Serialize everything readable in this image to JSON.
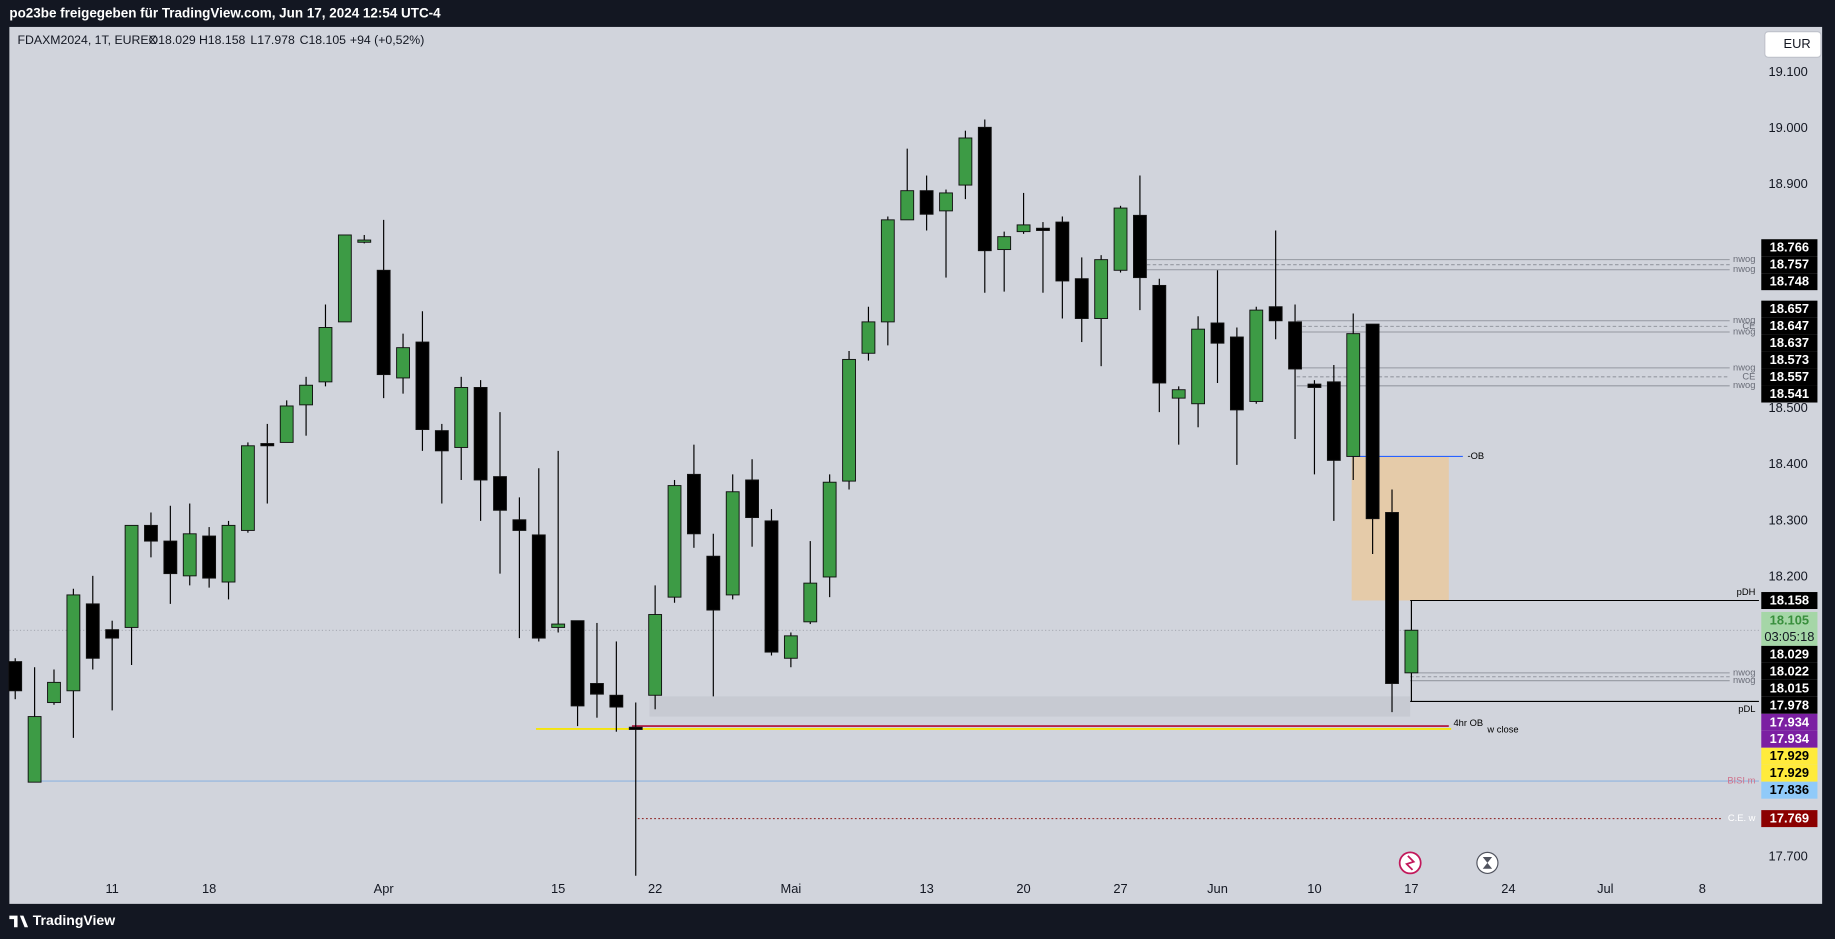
{
  "header": {
    "text": "po23be freigegeben für TradingView.com, Jun 17, 2024 12:54 UTC-4"
  },
  "footer": {
    "brand": "TradingView"
  },
  "currency_button": "EUR",
  "chart_data": {
    "type": "candlestick",
    "title": "FDAXM2024, 1T, EUREX",
    "ohlc_labels": [
      "O18.029",
      "H18.158",
      "L17.978",
      "C18.105"
    ],
    "change": "+94 (+0,52%)",
    "up_color": "#3d9b45",
    "down_color": "#000000",
    "categories": [
      null,
      null,
      null,
      null,
      null,
      "11",
      null,
      null,
      null,
      null,
      "18",
      null,
      null,
      null,
      null,
      null,
      null,
      null,
      null,
      "Apr",
      null,
      null,
      null,
      null,
      null,
      null,
      null,
      null,
      "15",
      null,
      null,
      null,
      null,
      "22",
      null,
      null,
      null,
      null,
      null,
      null,
      "Mai",
      null,
      null,
      null,
      null,
      null,
      null,
      "13",
      null,
      null,
      null,
      null,
      "20",
      null,
      null,
      null,
      null,
      "27",
      null,
      null,
      null,
      null,
      "Jun",
      null,
      null,
      null,
      null,
      "10",
      null,
      null,
      null,
      null,
      "17",
      null,
      null,
      null,
      null,
      "24",
      null,
      null,
      null,
      null,
      "Jul",
      null,
      null,
      null,
      null,
      "8",
      null
    ],
    "open": [
      18049,
      17834,
      17976,
      17997,
      18152,
      18106,
      18110,
      18292,
      18264,
      18202,
      18273,
      18191,
      18283,
      18438,
      18440,
      18507,
      18548,
      18655,
      18797,
      18747,
      18555,
      18619,
      18461,
      18431,
      18538,
      18379,
      18302,
      18275,
      18110,
      18122,
      18010,
      17989,
      17932,
      17989,
      18164,
      18383,
      18237,
      18168,
      18373,
      18300,
      18055,
      18120,
      18200,
      18371,
      18599,
      18655,
      18837,
      18889,
      18853,
      18899,
      19002,
      18784,
      18816,
      18822,
      18833,
      18732,
      18661,
      18747,
      18845,
      18720,
      18519,
      18509,
      18653,
      18628,
      18513,
      18682,
      18655,
      18544,
      18548,
      18415,
      18651,
      18315,
      18029,
      null,
      null,
      null,
      null,
      null,
      null,
      null,
      null,
      null,
      null,
      null,
      null,
      null,
      null,
      null,
      null
    ],
    "high": [
      18055,
      18039,
      18035,
      18179,
      18202,
      18122,
      18292,
      18315,
      18327,
      18331,
      18289,
      18300,
      18440,
      18473,
      18515,
      18557,
      18686,
      18810,
      18810,
      18837,
      18634,
      18674,
      18473,
      18557,
      18551,
      18494,
      18342,
      18394,
      18425,
      18122,
      18118,
      18085,
      17976,
      18185,
      18373,
      18436,
      18277,
      18383,
      18410,
      18321,
      18101,
      18264,
      18383,
      18603,
      18682,
      18843,
      18964,
      18916,
      18891,
      18996,
      19016,
      18816,
      18885,
      18833,
      18843,
      18770,
      18774,
      18862,
      18916,
      18732,
      18540,
      18665,
      18747,
      18645,
      18682,
      18818,
      18686,
      18551,
      18578,
      18670,
      18651,
      18356,
      18158,
      null,
      null,
      null,
      null,
      null,
      null,
      null,
      null,
      null,
      null,
      null,
      null,
      null,
      null,
      null,
      null
    ],
    "low": [
      17982,
      17834,
      17972,
      17913,
      18035,
      17962,
      18043,
      18235,
      18152,
      18185,
      18181,
      18160,
      18279,
      18331,
      18448,
      18452,
      18540,
      18655,
      18795,
      18519,
      18527,
      18425,
      18331,
      18373,
      18300,
      18206,
      18091,
      18085,
      18101,
      17934,
      17949,
      17924,
      17667,
      17964,
      18154,
      18252,
      17987,
      18160,
      18254,
      18060,
      18039,
      18116,
      18164,
      18356,
      18586,
      18613,
      18837,
      18818,
      18734,
      18874,
      18707,
      18709,
      18812,
      18707,
      18661,
      18619,
      18576,
      18743,
      18676,
      18494,
      18436,
      18467,
      18546,
      18400,
      18509,
      18624,
      18446,
      18383,
      18300,
      18373,
      18241,
      17959,
      17978,
      null,
      null,
      null,
      null,
      null,
      null,
      null,
      null,
      null,
      null,
      null,
      null,
      null,
      null,
      null,
      null
    ],
    "close": [
      17997,
      17951,
      18012,
      18168,
      18055,
      18091,
      18292,
      18264,
      18206,
      18277,
      18198,
      18292,
      18434,
      18434,
      18505,
      18542,
      18645,
      18810,
      18801,
      18561,
      18609,
      18463,
      18425,
      18538,
      18373,
      18319,
      18283,
      18091,
      18116,
      17970,
      17991,
      17968,
      17928,
      18133,
      18363,
      18277,
      18141,
      18352,
      18306,
      18066,
      18095,
      18189,
      18369,
      18588,
      18655,
      18837,
      18889,
      18847,
      18885,
      18983,
      18782,
      18807,
      18828,
      18818,
      18728,
      18661,
      18766,
      18858,
      18734,
      18546,
      18534,
      18642,
      18617,
      18498,
      18676,
      18657,
      18571,
      18538,
      18408,
      18634,
      18304,
      18010,
      18105,
      null,
      null,
      null,
      null,
      null,
      null,
      null,
      null,
      null,
      null,
      null,
      null,
      null,
      null,
      null,
      null
    ],
    "ylim": [
      17619,
      19179
    ],
    "yticks": [
      {
        "value": 17700,
        "label": "17.700"
      },
      {
        "value": 18200,
        "label": "18.200"
      },
      {
        "value": 18300,
        "label": "18.300"
      },
      {
        "value": 18400,
        "label": "18.400"
      },
      {
        "value": 18500,
        "label": "18.500"
      },
      {
        "value": 18900,
        "label": "18.900"
      },
      {
        "value": 19000,
        "label": "19.000"
      },
      {
        "value": 19100,
        "label": "19.100"
      }
    ],
    "zones": [
      {
        "from": 18415,
        "to": 18158,
        "color": "#e9c9a0"
      },
      {
        "from": 17987,
        "to": 17951,
        "color": "#c6c8d0"
      }
    ],
    "lines": [
      {
        "value": 18766,
        "label": "nwog",
        "color": "#9598a1"
      },
      {
        "value": 18757,
        "color": "#9598a1",
        "style": "dashed"
      },
      {
        "value": 18748,
        "label": "nwog",
        "color": "#9598a1"
      },
      {
        "value": 18657,
        "label": "nwog",
        "color": "#9598a1"
      },
      {
        "value": 18647,
        "label": "CE",
        "color": "#9598a1",
        "style": "dashed"
      },
      {
        "value": 18637,
        "label": "nwog",
        "color": "#9598a1"
      },
      {
        "value": 18573,
        "label": "nwog",
        "color": "#9598a1"
      },
      {
        "value": 18557,
        "label": "CE",
        "color": "#9598a1",
        "style": "dashed"
      },
      {
        "value": 18541,
        "label": "nwog",
        "color": "#9598a1"
      },
      {
        "value": 18415,
        "label": "-OB",
        "color": "#2962ff"
      },
      {
        "value": 18158,
        "label": "pDH",
        "color": "#000000"
      },
      {
        "value": 18029,
        "label": "nwog",
        "color": "#9598a1"
      },
      {
        "value": 18022,
        "color": "#9598a1",
        "style": "dashed"
      },
      {
        "value": 18015,
        "label": "nwog",
        "color": "#9598a1"
      },
      {
        "value": 17978,
        "label": "pDL",
        "color": "#000000"
      },
      {
        "value": 17934,
        "label": "4hr OB",
        "color": "#b2254a"
      },
      {
        "value": 17929,
        "label": "w close",
        "color": "#f5e50a"
      },
      {
        "value": 17836,
        "label": "BISI m",
        "color": "#90b4e0",
        "label_color": "#d0708a"
      },
      {
        "value": 17769,
        "label": "C.E. w",
        "color": "#8b1a1a",
        "style": "dotted",
        "label_color": "#ffffff"
      }
    ],
    "badges": [
      {
        "value": 18766,
        "label": "18.766",
        "color": "#000000",
        "text_color": "#ffffff"
      },
      {
        "value": 18757,
        "label": "18.757",
        "color": "#000000",
        "text_color": "#ffffff"
      },
      {
        "value": 18748,
        "label": "18.748",
        "color": "#000000",
        "text_color": "#ffffff"
      },
      {
        "value": 18657,
        "label": "18.657",
        "color": "#000000",
        "text_color": "#ffffff"
      },
      {
        "value": 18647,
        "label": "18.647",
        "color": "#000000",
        "text_color": "#ffffff"
      },
      {
        "value": 18637,
        "label": "18.637",
        "color": "#000000",
        "text_color": "#ffffff"
      },
      {
        "value": 18573,
        "label": "18.573",
        "color": "#000000",
        "text_color": "#ffffff"
      },
      {
        "value": 18557,
        "label": "18.557",
        "color": "#000000",
        "text_color": "#ffffff"
      },
      {
        "value": 18541,
        "label": "18.541",
        "color": "#000000",
        "text_color": "#ffffff"
      },
      {
        "value": 18158,
        "label": "18.158",
        "color": "#000000",
        "text_color": "#ffffff"
      },
      {
        "value": 18105,
        "label": "18.105",
        "time": "03:05:18",
        "color": "#a5d6a7",
        "text_color": "#388e3c"
      },
      {
        "value": 18029,
        "label": "18.029",
        "color": "#000000",
        "text_color": "#ffffff"
      },
      {
        "value": 18022,
        "label": "18.022",
        "color": "#000000",
        "text_color": "#ffffff"
      },
      {
        "value": 18015,
        "label": "18.015",
        "color": "#000000",
        "text_color": "#ffffff"
      },
      {
        "value": 17978,
        "label": "17.978",
        "color": "#000000",
        "text_color": "#ffffff"
      },
      {
        "value": 17934,
        "label": "17.934",
        "color": "#7b1fa2",
        "text_color": "#ffffff"
      },
      {
        "value": 17934,
        "label": "17.934",
        "color": "#7b1fa2",
        "text_color": "#ffffff"
      },
      {
        "value": 17929,
        "label": "17.929",
        "color": "#ffeb3b",
        "text_color": "#000000"
      },
      {
        "value": 17929,
        "label": "17.929",
        "color": "#ffeb3b",
        "text_color": "#000000"
      },
      {
        "value": 17836,
        "label": "17.836",
        "color": "#90caf9",
        "text_color": "#000000"
      },
      {
        "value": 17769,
        "label": "17.769",
        "color": "#8b0000",
        "text_color": "#ffffff"
      }
    ]
  }
}
